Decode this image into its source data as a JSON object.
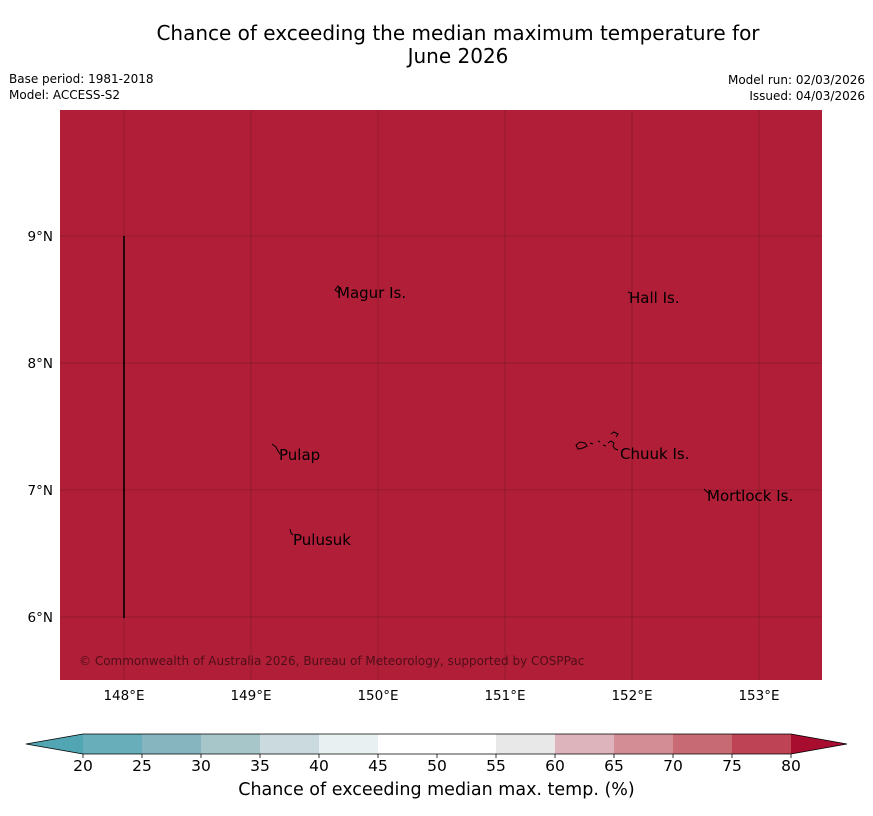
{
  "header": {
    "title_line1": "Chance of exceeding the median maximum temperature for",
    "title_line2": "June 2026",
    "base_period": "Base period: 1981-2018",
    "model": "Model: ACCESS-S2",
    "model_run": "Model run: 02/03/2026",
    "issued": "Issued: 04/03/2026"
  },
  "map": {
    "fill_color": "#b01e37",
    "lat_labels": [
      "9°N",
      "8°N",
      "7°N",
      "6°N"
    ],
    "lon_labels": [
      "148°E",
      "149°E",
      "150°E",
      "151°E",
      "152°E",
      "153°E"
    ],
    "places": [
      {
        "name": "Magur Is."
      },
      {
        "name": "Hall Is."
      },
      {
        "name": "Pulap"
      },
      {
        "name": "Chuuk Is."
      },
      {
        "name": "Mortlock Is."
      },
      {
        "name": "Pulusuk"
      }
    ],
    "copyright": "© Commonwealth of Australia 2026, Bureau of Meteorology, supported by COSPPac"
  },
  "colorbar": {
    "ticks": [
      "20",
      "25",
      "30",
      "35",
      "40",
      "45",
      "50",
      "55",
      "60",
      "65",
      "70",
      "75",
      "80"
    ],
    "colors": [
      "#67aeba",
      "#86b5bf",
      "#a7c6ca",
      "#cbdade",
      "#e9f0f2",
      "#ffffff",
      "#ffffff",
      "#e8e8e8",
      "#ddb4bc",
      "#d38d94",
      "#c86a73",
      "#bd4355"
    ],
    "under_color": "#52a5b3",
    "over_color": "#a80d2f",
    "label": "Chance of exceeding median max. temp. (%)"
  }
}
